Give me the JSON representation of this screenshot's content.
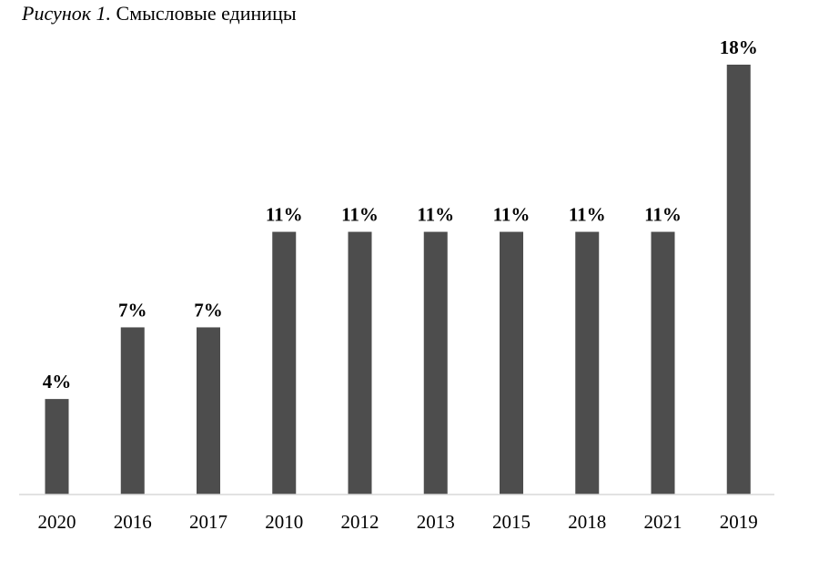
{
  "caption": {
    "lead": "Рисунок 1.",
    "text": "Смысловые единицы"
  },
  "colors": {
    "bar": "#4d4d4d",
    "axis": "#d9d9d9"
  },
  "chart_data": {
    "type": "bar",
    "title": "Рисунок 1. Смысловые единицы",
    "categories": [
      "2020",
      "2016",
      "2017",
      "2010",
      "2012",
      "2013",
      "2015",
      "2018",
      "2021",
      "2019"
    ],
    "values": [
      4,
      7,
      7,
      11,
      11,
      11,
      11,
      11,
      11,
      18
    ],
    "value_labels": [
      "4%",
      "7%",
      "7%",
      "11%",
      "11%",
      "11%",
      "11%",
      "11%",
      "11%",
      "18%"
    ],
    "unit": "%",
    "xlabel": "",
    "ylabel": "",
    "ylim": [
      0,
      18
    ],
    "grid": false,
    "legend": "none"
  }
}
